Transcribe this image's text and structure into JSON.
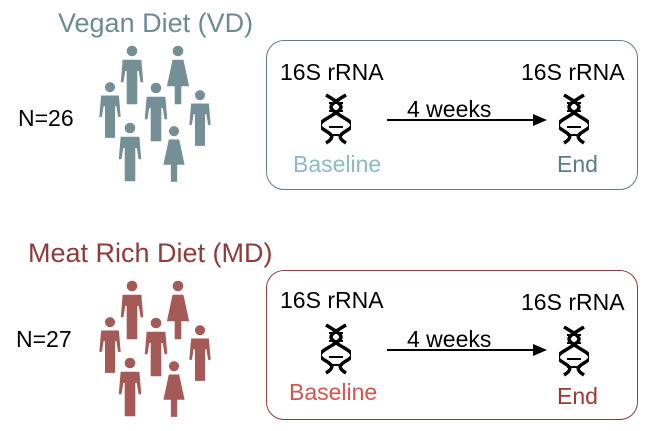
{
  "groups": [
    {
      "title": "Vegan Diet (VD)",
      "title_color": "#6b8c94",
      "count": "N=26",
      "people_color": "#748f95",
      "panel_border_color": "#5d8088",
      "start_label": "16S rRNA",
      "end_label": "16S rRNA",
      "duration": "4 weeks",
      "baseline": "Baseline",
      "baseline_color": "#8eb8c5",
      "end": "End",
      "end_color": "#5b7d86"
    },
    {
      "title": "Meat Rich Diet (MD)",
      "title_color": "#8e3b3b",
      "count": "N=27",
      "people_color": "#a55a58",
      "panel_border_color": "#8a4141",
      "start_label": "16S rRNA",
      "end_label": "16S rRNA",
      "duration": "4 weeks",
      "baseline": "Baseline",
      "baseline_color": "#d2554f",
      "end": "End",
      "end_color": "#9c3838"
    }
  ],
  "icons": {
    "person": "person-icon",
    "dna": "dna-icon",
    "arrow": "arrow-icon"
  }
}
